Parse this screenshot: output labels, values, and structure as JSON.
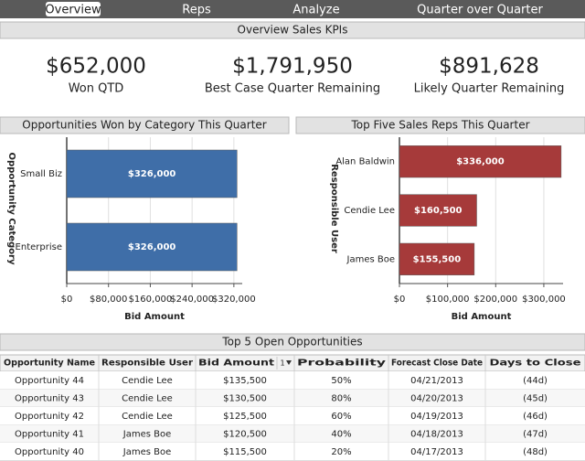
{
  "nav": {
    "tabs": [
      "Overview",
      "Reps",
      "Analyze",
      "Quarter over Quarter"
    ],
    "active": 0
  },
  "kpi_section": {
    "title": "Overview Sales KPIs",
    "kpis": [
      {
        "value": "$652,000",
        "label": "Won QTD"
      },
      {
        "value": "$1,791,950",
        "label": "Best Case Quarter Remaining"
      },
      {
        "value": "$891,628",
        "label": "Likely Quarter Remaining"
      }
    ]
  },
  "chart_data": [
    {
      "type": "bar",
      "orientation": "horizontal",
      "title": "Opportunities Won by Category This Quarter",
      "categories": [
        "Small Biz",
        "Enterprise"
      ],
      "values": [
        326000,
        326000
      ],
      "value_labels": [
        "$326,000",
        "$326,000"
      ],
      "color": "#3f6ea8",
      "xlabel": "Bid Amount",
      "ylabel": "Opportunity Category",
      "xlim": [
        0,
        336000
      ],
      "xticks": [
        {
          "value": 0,
          "label": "$0"
        },
        {
          "value": 80000,
          "label": "$80,000"
        },
        {
          "value": 160000,
          "label": "$160,000"
        },
        {
          "value": 240000,
          "label": "$240,000"
        },
        {
          "value": 320000,
          "label": "$320,000"
        }
      ],
      "grid": true
    },
    {
      "type": "bar",
      "orientation": "horizontal",
      "title": "Top Five Sales Reps This Quarter",
      "categories": [
        "Alan Baldwin",
        "Cendie Lee",
        "James Boe"
      ],
      "values": [
        336000,
        160500,
        155500
      ],
      "value_labels": [
        "$336,000",
        "$160,500",
        "$155,500"
      ],
      "color": "#a63a3a",
      "xlabel": "Bid Amount",
      "ylabel": "Responsible User",
      "xlim": [
        0,
        340000
      ],
      "xticks": [
        {
          "value": 0,
          "label": "$0"
        },
        {
          "value": 100000,
          "label": "$100,000"
        },
        {
          "value": 200000,
          "label": "$200,000"
        },
        {
          "value": 300000,
          "label": "$300,000"
        }
      ],
      "grid": true
    }
  ],
  "table": {
    "title": "Top 5 Open Opportunities",
    "sort_rank": "1",
    "columns": [
      "Opportunity Name",
      "Responsible User",
      "Bid Amount",
      "Probability",
      "Forecast Close Date",
      "Days to Close"
    ],
    "rows": [
      [
        "Opportunity 44",
        "Cendie Lee",
        "$135,500",
        "50%",
        "04/21/2013",
        "(44d)"
      ],
      [
        "Opportunity 43",
        "Cendie Lee",
        "$130,500",
        "80%",
        "04/20/2013",
        "(45d)"
      ],
      [
        "Opportunity 42",
        "Cendie Lee",
        "$125,500",
        "60%",
        "04/19/2013",
        "(46d)"
      ],
      [
        "Opportunity 41",
        "James Boe",
        "$120,500",
        "40%",
        "04/18/2013",
        "(47d)"
      ],
      [
        "Opportunity 40",
        "James Boe",
        "$115,500",
        "20%",
        "04/17/2013",
        "(48d)"
      ]
    ]
  }
}
